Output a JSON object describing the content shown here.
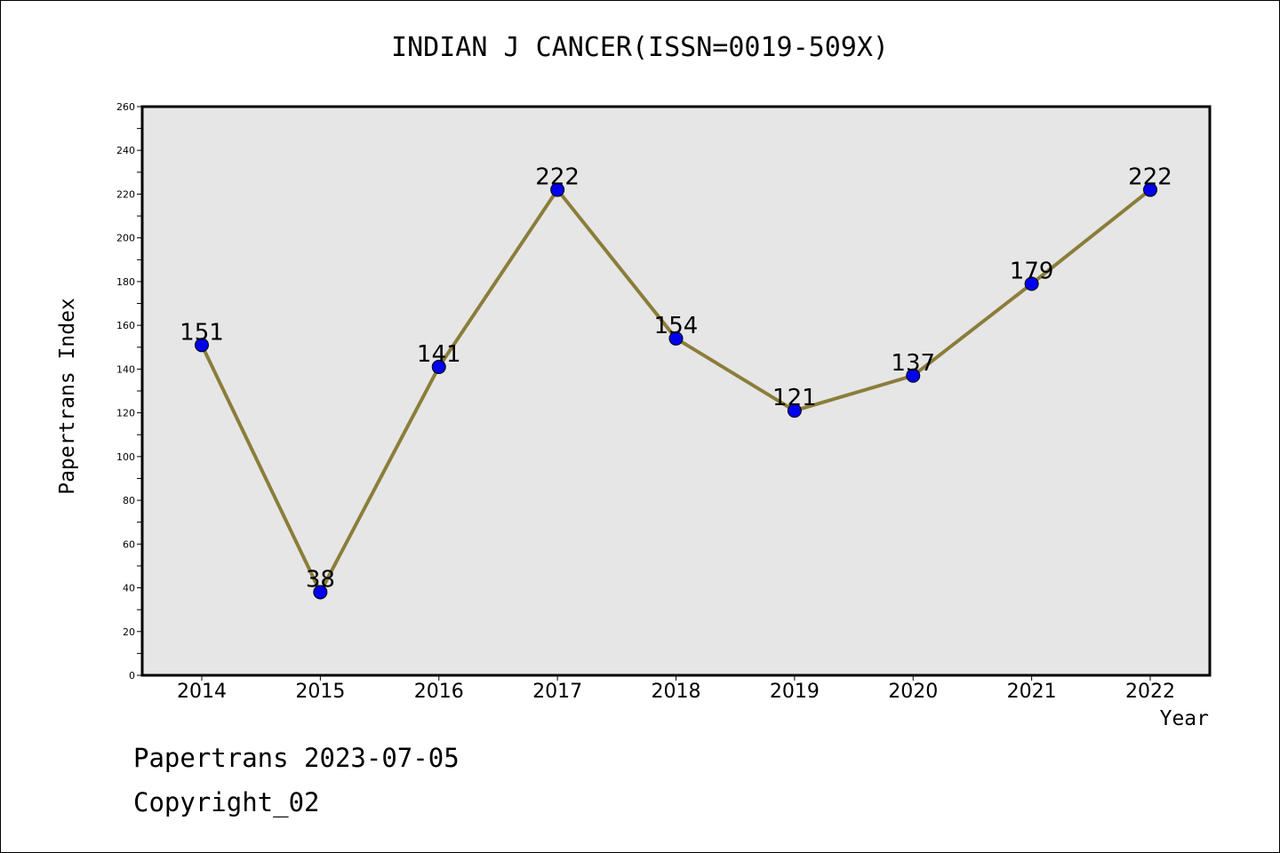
{
  "chart_data": {
    "type": "line",
    "title": "INDIAN J CANCER(ISSN=0019-509X)",
    "xlabel": "Year",
    "ylabel": "Papertrans Index",
    "categories": [
      "2014",
      "2015",
      "2016",
      "2017",
      "2018",
      "2019",
      "2020",
      "2021",
      "2022"
    ],
    "series": [
      {
        "values": [
          151,
          38,
          141,
          222,
          154,
          121,
          137,
          179,
          222
        ]
      }
    ],
    "ylim": [
      0,
      260
    ],
    "yticks": [
      0,
      20,
      40,
      60,
      80,
      100,
      120,
      140,
      160,
      180,
      200,
      220,
      240,
      260
    ],
    "grid": false,
    "line_color": "#8b7d3a",
    "marker_color": "#0000ee",
    "plot_background": "#e6e6e6"
  },
  "footer": {
    "date": "Papertrans 2023-07-05",
    "copyright": "Copyright_02"
  }
}
